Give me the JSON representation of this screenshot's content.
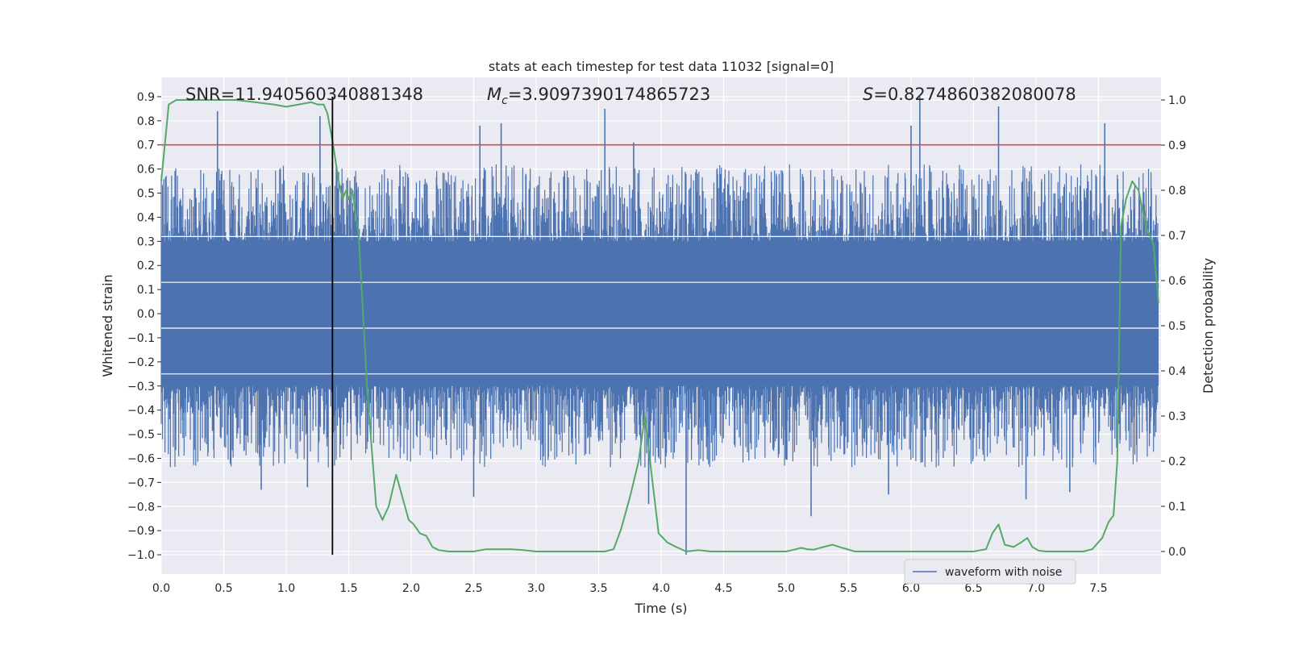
{
  "chart_data": {
    "type": "line",
    "title": "stats at each timestep for test data 11032 [signal=0]",
    "xlabel": "Time (s)",
    "ylabel_left": "Whitened strain",
    "ylabel_right": "Detection probability",
    "xlim": [
      0.0,
      8.0
    ],
    "ylim_left": [
      -1.08,
      0.98
    ],
    "ylim_right": [
      -0.05,
      1.05
    ],
    "x_ticks": [
      "0.0",
      "0.5",
      "1.0",
      "1.5",
      "2.0",
      "2.5",
      "3.0",
      "3.5",
      "4.0",
      "4.5",
      "5.0",
      "5.5",
      "6.0",
      "6.5",
      "7.0",
      "7.5"
    ],
    "y_left_ticks": [
      "0.9",
      "0.8",
      "0.7",
      "0.6",
      "0.5",
      "0.4",
      "0.3",
      "0.2",
      "0.1",
      "0.0",
      "−0.1",
      "−0.2",
      "−0.3",
      "−0.4",
      "−0.5",
      "−0.6",
      "−0.7",
      "−0.8",
      "−0.9",
      "−1.0"
    ],
    "y_right_ticks": [
      "1.0",
      "0.9",
      "0.8",
      "0.7",
      "0.6",
      "0.5",
      "0.4",
      "0.3",
      "0.2",
      "0.1",
      "0.0"
    ],
    "grid": true,
    "annotations": {
      "snr": "SNR=11.940560340881348",
      "mc_symbol": "M",
      "mc_sub": "c",
      "mc_value": "=3.9097390174865723",
      "s_symbol": "S",
      "s_value": "=0.8274860382080078"
    },
    "threshold": {
      "axis": "left",
      "y": 0.7,
      "color": "#c44e52"
    },
    "vline": {
      "x": 1.37,
      "y_range": [
        -1.0,
        0.9
      ],
      "color": "#000000"
    },
    "legend": {
      "placement": "lower-right",
      "entries": [
        "waveform with noise"
      ]
    },
    "series": [
      {
        "name": "waveform with noise",
        "axis": "left",
        "color": "#4c72b0",
        "envelope": "noise band roughly ±0.3 with spikes up to ~0.9 and down to ~−1.0",
        "spikes": [
          {
            "x": 0.45,
            "y": 0.84
          },
          {
            "x": 1.27,
            "y": 0.82
          },
          {
            "x": 2.55,
            "y": 0.78
          },
          {
            "x": 2.72,
            "y": 0.79
          },
          {
            "x": 3.55,
            "y": 0.85
          },
          {
            "x": 3.78,
            "y": 0.71
          },
          {
            "x": 6.0,
            "y": 0.78
          },
          {
            "x": 6.07,
            "y": 0.9
          },
          {
            "x": 6.7,
            "y": 0.86
          },
          {
            "x": 7.55,
            "y": 0.79
          },
          {
            "x": 0.8,
            "y": -0.73
          },
          {
            "x": 1.17,
            "y": -0.72
          },
          {
            "x": 2.5,
            "y": -0.76
          },
          {
            "x": 3.9,
            "y": -0.79
          },
          {
            "x": 4.2,
            "y": -1.0
          },
          {
            "x": 5.2,
            "y": -0.84
          },
          {
            "x": 5.82,
            "y": -0.75
          },
          {
            "x": 6.92,
            "y": -0.77
          },
          {
            "x": 7.27,
            "y": -0.74
          }
        ]
      },
      {
        "name": "",
        "axis": "right",
        "color": "#55a868",
        "x": [
          0.0,
          0.06,
          0.12,
          0.2,
          0.3,
          0.45,
          0.6,
          0.75,
          0.9,
          1.0,
          1.1,
          1.2,
          1.25,
          1.3,
          1.33,
          1.37,
          1.42,
          1.45,
          1.48,
          1.5,
          1.53,
          1.58,
          1.65,
          1.72,
          1.77,
          1.82,
          1.88,
          1.93,
          1.98,
          2.02,
          2.07,
          2.12,
          2.17,
          2.22,
          2.3,
          2.4,
          2.5,
          2.6,
          2.7,
          2.8,
          2.9,
          3.0,
          3.2,
          3.4,
          3.55,
          3.62,
          3.68,
          3.75,
          3.82,
          3.87,
          3.92,
          3.98,
          4.05,
          4.12,
          4.2,
          4.3,
          4.4,
          4.5,
          4.7,
          4.9,
          5.0,
          5.05,
          5.12,
          5.17,
          5.22,
          5.3,
          5.37,
          5.45,
          5.55,
          5.7,
          5.9,
          6.1,
          6.3,
          6.5,
          6.6,
          6.65,
          6.7,
          6.75,
          6.82,
          6.88,
          6.93,
          6.97,
          7.02,
          7.08,
          7.2,
          7.3,
          7.38,
          7.45,
          7.53,
          7.58,
          7.62,
          7.65,
          7.68,
          7.72,
          7.77,
          7.82,
          7.88,
          7.94,
          7.98
        ],
        "y": [
          0.82,
          0.99,
          1.0,
          1.0,
          1.0,
          1.0,
          1.0,
          0.995,
          0.99,
          0.985,
          0.99,
          0.995,
          0.99,
          0.99,
          0.97,
          0.91,
          0.82,
          0.78,
          0.8,
          0.78,
          0.8,
          0.7,
          0.35,
          0.1,
          0.07,
          0.1,
          0.17,
          0.12,
          0.07,
          0.06,
          0.04,
          0.035,
          0.01,
          0.003,
          0.0,
          0.0,
          0.0,
          0.005,
          0.005,
          0.005,
          0.003,
          0.0,
          0.0,
          0.0,
          0.0,
          0.005,
          0.05,
          0.12,
          0.2,
          0.3,
          0.18,
          0.04,
          0.02,
          0.01,
          0.0,
          0.003,
          0.0,
          0.0,
          0.0,
          0.0,
          0.0,
          0.003,
          0.008,
          0.005,
          0.004,
          0.01,
          0.015,
          0.008,
          0.0,
          0.0,
          0.0,
          0.0,
          0.0,
          0.0,
          0.005,
          0.04,
          0.06,
          0.015,
          0.01,
          0.02,
          0.03,
          0.01,
          0.002,
          0.0,
          0.0,
          0.0,
          0.0,
          0.005,
          0.03,
          0.065,
          0.08,
          0.2,
          0.72,
          0.78,
          0.82,
          0.8,
          0.72,
          0.68,
          0.55
        ]
      }
    ]
  }
}
